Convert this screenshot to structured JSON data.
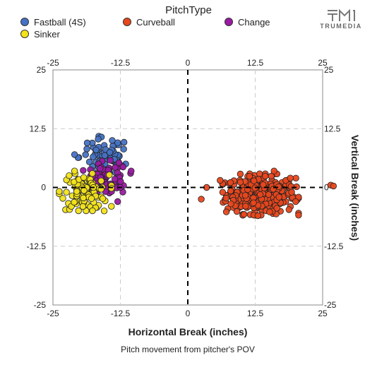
{
  "legend": {
    "title": "PitchType",
    "items": [
      {
        "label": "Fastball (4S)",
        "color": "#4472c4"
      },
      {
        "label": "Curveball",
        "color": "#e8471d"
      },
      {
        "label": "Change",
        "color": "#9a1aa3"
      },
      {
        "label": "Sinker",
        "color": "#f2e31a"
      }
    ]
  },
  "logo": {
    "text": "TRUMEDIA",
    "icon": "trumedia-logo-icon"
  },
  "chart_data": {
    "type": "scatter",
    "xlabel": "Horizontal Break (inches)",
    "ylabel": "Vertical Break (inches)",
    "caption": "Pitch movement from pitcher's POV",
    "xlim": [
      -25,
      25
    ],
    "ylim": [
      -25,
      25
    ],
    "x_ticks": [
      "-25",
      "-12.5",
      "0",
      "12.5",
      "25"
    ],
    "y_ticks": [
      "25",
      "12.5",
      "0",
      "-12.5",
      "-25"
    ],
    "grid": true,
    "zero_lines": "dashed",
    "series": [
      {
        "name": "Fastball (4S)",
        "color": "#4472c4",
        "center": [
          -15.5,
          6.5
        ],
        "spread": [
          2.3,
          2.0
        ],
        "count": 70,
        "points": [
          [
            -21,
            7
          ],
          [
            -13,
            9.5
          ],
          [
            -14,
            10
          ],
          [
            -12.5,
            4.5
          ],
          [
            -11.5,
            5
          ]
        ]
      },
      {
        "name": "Sinker",
        "color": "#f2e31a",
        "center": [
          -19,
          -1
        ],
        "spread": [
          2.2,
          1.8
        ],
        "count": 95,
        "points": [
          [
            -22.5,
            -1
          ],
          [
            -22,
            2.5
          ],
          [
            -15.5,
            -5
          ],
          [
            -21,
            3.5
          ]
        ]
      },
      {
        "name": "Change",
        "color": "#9a1aa3",
        "center": [
          -15,
          1.8
        ],
        "spread": [
          2.0,
          1.8
        ],
        "count": 70,
        "points": [
          [
            -10.5,
            3.5
          ],
          [
            -13,
            -3
          ],
          [
            -12.5,
            0
          ]
        ]
      },
      {
        "name": "Curveball",
        "color": "#e8471d",
        "center": [
          13.5,
          -1.5
        ],
        "spread": [
          3.2,
          2.0
        ],
        "count": 340,
        "points": [
          [
            3.5,
            0
          ],
          [
            2.5,
            -2.5
          ],
          [
            26.5,
            0.5
          ],
          [
            27,
            0.3
          ],
          [
            19,
            2
          ],
          [
            20,
            -3
          ],
          [
            8,
            -3.5
          ],
          [
            6,
            1.5
          ],
          [
            13,
            -6
          ],
          [
            16,
            3.5
          ]
        ]
      }
    ]
  }
}
